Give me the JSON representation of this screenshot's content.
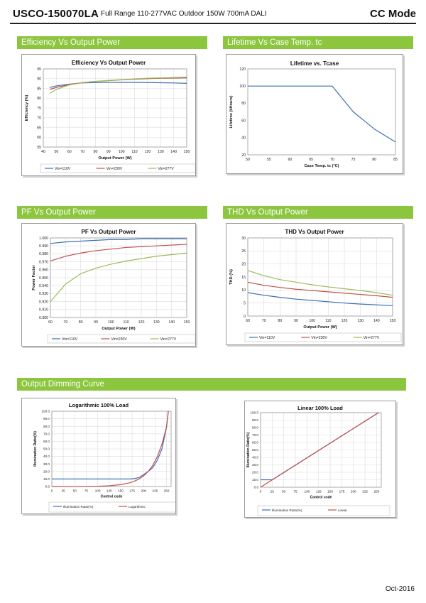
{
  "header": {
    "model": "USCO-150070LA",
    "subtitle": "Full Range 110-277VAC Outdoor 150W 700mA DALI",
    "mode": "CC Mode"
  },
  "sections": {
    "efficiency": "Efficiency Vs Output Power",
    "lifetime": "Lifetime Vs Case Temp. tc",
    "pf": "PF Vs Output Power",
    "thd": "THD Vs Output Power",
    "dimming": "Output Dimming Curve"
  },
  "footer": {
    "date": "Oct-2016"
  },
  "colors": {
    "accent": "#8cc63f",
    "v110": "#3c6fb6",
    "v230": "#c0504d",
    "v277": "#9bbb59"
  },
  "chart_data": [
    {
      "id": "efficiency",
      "type": "line",
      "title": "Efficiency Vs Output Power",
      "xlabel": "Output Power (W)",
      "ylabel": "Efficiency (%)",
      "xlim": [
        40,
        150
      ],
      "ylim": [
        55,
        95
      ],
      "xticks": [
        40,
        50,
        60,
        70,
        80,
        90,
        100,
        110,
        120,
        130,
        140,
        150
      ],
      "yticks": [
        55,
        60,
        65,
        70,
        75,
        80,
        85,
        90,
        95
      ],
      "tick_labels_x": [
        "40",
        "50",
        "60",
        "70",
        "80",
        "90",
        "100",
        "110",
        "120",
        "130",
        "140",
        "150"
      ],
      "tick_labels_y": [
        "55",
        "60",
        "65",
        "70",
        "75",
        "80",
        "85",
        "90",
        "95"
      ],
      "grid": true,
      "legend": "bottom",
      "series": [
        {
          "name": "Vin=110V",
          "color": "#3c6fb6",
          "x": [
            45,
            50,
            60,
            70,
            80,
            90,
            100,
            110,
            120,
            130,
            140,
            150
          ],
          "y": [
            85.5,
            86.3,
            87.2,
            87.8,
            88.0,
            88.1,
            88.1,
            88.1,
            88.0,
            87.9,
            87.8,
            87.6
          ]
        },
        {
          "name": "Vin=230V",
          "color": "#c0504d",
          "x": [
            45,
            50,
            60,
            70,
            80,
            90,
            100,
            110,
            120,
            130,
            140,
            150
          ],
          "y": [
            84.5,
            85.5,
            87.0,
            88.0,
            88.6,
            89.0,
            89.4,
            89.7,
            90.0,
            90.2,
            90.3,
            90.4
          ]
        },
        {
          "name": "Vin=277V",
          "color": "#9bbb59",
          "x": [
            45,
            50,
            60,
            70,
            80,
            90,
            100,
            110,
            120,
            130,
            140,
            150
          ],
          "y": [
            82.5,
            84.5,
            86.8,
            87.9,
            88.6,
            89.1,
            89.5,
            89.9,
            90.2,
            90.4,
            90.6,
            90.8
          ]
        }
      ]
    },
    {
      "id": "lifetime",
      "type": "line",
      "title": "Lifetime vs. Tcase",
      "xlabel": "Case Temp. tc (°C)",
      "ylabel": "Lifetime (kHours)",
      "xlim": [
        50,
        85
      ],
      "ylim": [
        20,
        120
      ],
      "xticks": [
        50,
        55,
        60,
        65,
        70,
        75,
        80,
        85
      ],
      "yticks": [
        20,
        40,
        60,
        80,
        100,
        120
      ],
      "tick_labels_x": [
        "50",
        "55",
        "60",
        "65",
        "70",
        "75",
        "80",
        "85"
      ],
      "tick_labels_y": [
        "20",
        "40",
        "60",
        "80",
        "100",
        "120"
      ],
      "grid": false,
      "legend": "none",
      "series": [
        {
          "name": "",
          "color": "#3c6fb6",
          "x": [
            50,
            70,
            75,
            80,
            85
          ],
          "y": [
            100,
            100,
            70,
            50,
            35
          ]
        }
      ]
    },
    {
      "id": "pf",
      "type": "line",
      "title": "PF Vs Output Power",
      "xlabel": "Output Power (W)",
      "ylabel": "Power Factor",
      "xlim": [
        60,
        150
      ],
      "ylim": [
        0.9,
        1.0
      ],
      "xticks": [
        60,
        70,
        80,
        90,
        100,
        110,
        120,
        130,
        140,
        150
      ],
      "yticks": [
        0.9,
        0.91,
        0.92,
        0.93,
        0.94,
        0.95,
        0.96,
        0.97,
        0.98,
        0.99,
        1.0
      ],
      "tick_labels_x": [
        "60",
        "70",
        "80",
        "90",
        "100",
        "110",
        "120",
        "130",
        "140",
        "150"
      ],
      "tick_labels_y": [
        "0.900",
        "0.910",
        "0.920",
        "0.930",
        "0.940",
        "0.950",
        "0.960",
        "0.970",
        "0.980",
        "0.990",
        "1.000"
      ],
      "grid": true,
      "legend": "bottom",
      "series": [
        {
          "name": "Vin=110V",
          "color": "#3c6fb6",
          "x": [
            60,
            70,
            80,
            90,
            100,
            110,
            120,
            130,
            140,
            150
          ],
          "y": [
            0.993,
            0.995,
            0.996,
            0.997,
            0.998,
            0.998,
            0.999,
            0.999,
            0.999,
            0.999
          ]
        },
        {
          "name": "Vin=230V",
          "color": "#c0504d",
          "x": [
            60,
            70,
            80,
            90,
            100,
            110,
            120,
            130,
            140,
            150
          ],
          "y": [
            0.971,
            0.977,
            0.981,
            0.984,
            0.986,
            0.988,
            0.989,
            0.99,
            0.991,
            0.992
          ]
        },
        {
          "name": "Vin=277V",
          "color": "#9bbb59",
          "x": [
            60,
            70,
            80,
            90,
            100,
            110,
            120,
            130,
            140,
            150
          ],
          "y": [
            0.92,
            0.942,
            0.955,
            0.962,
            0.967,
            0.971,
            0.974,
            0.977,
            0.979,
            0.981
          ]
        }
      ]
    },
    {
      "id": "thd",
      "type": "line",
      "title": "THD Vs Output Power",
      "xlabel": "Output Power (W)",
      "ylabel": "THD (%)",
      "xlim": [
        60,
        150
      ],
      "ylim": [
        0,
        30
      ],
      "xticks": [
        60,
        70,
        80,
        90,
        100,
        110,
        120,
        130,
        140,
        150
      ],
      "yticks": [
        0,
        5,
        10,
        15,
        20,
        25,
        30
      ],
      "tick_labels_x": [
        "60",
        "70",
        "80",
        "90",
        "100",
        "110",
        "120",
        "130",
        "140",
        "150"
      ],
      "tick_labels_y": [
        "0",
        "5",
        "10",
        "15",
        "20",
        "25",
        "30"
      ],
      "grid": true,
      "legend": "bottom",
      "series": [
        {
          "name": "Vin=110V",
          "color": "#3c6fb6",
          "x": [
            60,
            70,
            80,
            90,
            100,
            110,
            120,
            130,
            140,
            150
          ],
          "y": [
            9.0,
            8.0,
            7.2,
            6.5,
            6.0,
            5.5,
            5.0,
            4.6,
            4.3,
            4.0
          ]
        },
        {
          "name": "Vin=230V",
          "color": "#c0504d",
          "x": [
            60,
            70,
            80,
            90,
            100,
            110,
            120,
            130,
            140,
            150
          ],
          "y": [
            13.0,
            11.8,
            11.0,
            10.3,
            9.8,
            9.3,
            8.8,
            8.3,
            7.8,
            7.2
          ]
        },
        {
          "name": "Vin=277V",
          "color": "#9bbb59",
          "x": [
            60,
            70,
            80,
            90,
            100,
            110,
            120,
            130,
            140,
            150
          ],
          "y": [
            17.5,
            15.5,
            14.0,
            13.0,
            12.0,
            11.2,
            10.5,
            9.8,
            9.0,
            8.0
          ]
        }
      ]
    },
    {
      "id": "dim_log",
      "type": "line",
      "title": "Logarithmic 100% Load",
      "xlabel": "Control code",
      "ylabel": "Illumination Ratio(%)",
      "xlim": [
        0,
        260
      ],
      "ylim": [
        0,
        100
      ],
      "xticks": [
        0,
        25,
        50,
        75,
        100,
        125,
        150,
        175,
        200,
        225,
        250
      ],
      "yticks": [
        0,
        10,
        20,
        30,
        40,
        50,
        60,
        70,
        80,
        90,
        100
      ],
      "tick_labels_x": [
        "0",
        "25",
        "50",
        "75",
        "100",
        "125",
        "150",
        "175",
        "200",
        "225",
        "250"
      ],
      "tick_labels_y": [
        "0.0",
        "10.0",
        "20.0",
        "30.0",
        "40.0",
        "50.0",
        "60.0",
        "70.0",
        "80.0",
        "90.0",
        "100.0"
      ],
      "grid": true,
      "legend": "bottom",
      "series": [
        {
          "name": "Illumination Ratio(%)",
          "color": "#3c6fb6",
          "x": [
            0,
            25,
            50,
            75,
            100,
            125,
            150,
            170,
            180,
            190,
            200,
            210,
            220,
            230,
            240,
            250,
            254
          ],
          "y": [
            10,
            10,
            10,
            10,
            10,
            10,
            10,
            10,
            10.5,
            12,
            15.8,
            20,
            25.1,
            35,
            50,
            79,
            100
          ]
        },
        {
          "name": "Logarithmic",
          "color": "#c0504d",
          "x": [
            0,
            50,
            100,
            125,
            150,
            170,
            180,
            190,
            200,
            210,
            220,
            230,
            240,
            250,
            254
          ],
          "y": [
            0,
            0.05,
            0.4,
            1.0,
            2.5,
            5.0,
            7.1,
            10.0,
            14.1,
            20.0,
            28.2,
            39.8,
            56.2,
            79.4,
            100
          ]
        }
      ]
    },
    {
      "id": "dim_lin",
      "type": "line",
      "title": "Linear 100% Load",
      "xlabel": "Control code",
      "ylabel": "Illumination Ratio(%)",
      "xlim": [
        0,
        260
      ],
      "ylim": [
        0,
        100
      ],
      "xticks": [
        0,
        25,
        50,
        75,
        100,
        125,
        150,
        175,
        200,
        225,
        250
      ],
      "yticks": [
        0,
        10,
        20,
        30,
        40,
        50,
        60,
        70,
        80,
        90,
        100
      ],
      "tick_labels_x": [
        "0",
        "25",
        "50",
        "75",
        "100",
        "125",
        "150",
        "175",
        "200",
        "225",
        "250"
      ],
      "tick_labels_y": [
        "0.0",
        "10.0",
        "20.0",
        "30.0",
        "40.0",
        "50.0",
        "60.0",
        "70.0",
        "80.0",
        "90.0",
        "100.0"
      ],
      "grid": true,
      "legend": "bottom",
      "series": [
        {
          "name": "Illumination Ratio(%)",
          "color": "#3c6fb6",
          "x": [
            0,
            25,
            254
          ],
          "y": [
            10,
            10,
            100
          ]
        },
        {
          "name": "Linear",
          "color": "#c0504d",
          "x": [
            0,
            254
          ],
          "y": [
            0,
            100
          ]
        }
      ]
    }
  ]
}
